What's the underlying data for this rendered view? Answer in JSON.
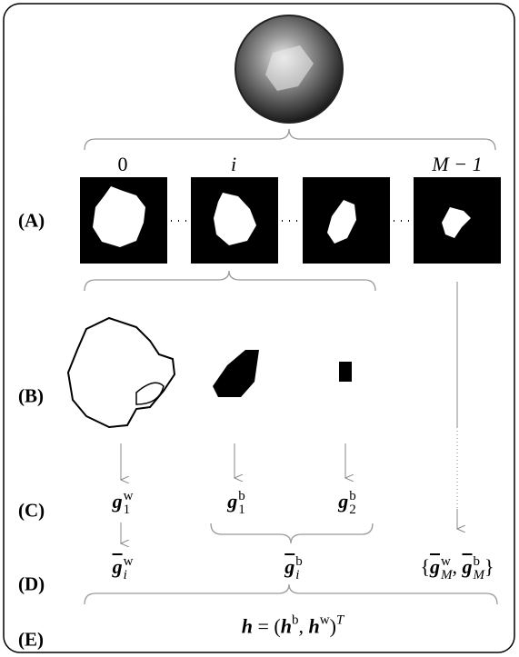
{
  "row_labels": [
    "(A)",
    "(B)",
    "(C)",
    "(D)",
    "(E)"
  ],
  "slice_labels": [
    "0",
    "i",
    "M − 1"
  ],
  "C": [
    {
      "base": "g",
      "sub": "1",
      "sup": "w"
    },
    {
      "base": "g",
      "sub": "1",
      "sup": "b"
    },
    {
      "base": "g",
      "sub": "2",
      "sup": "b"
    }
  ],
  "D": {
    "white": {
      "base": "g",
      "sub": "i",
      "sup": "w"
    },
    "black": {
      "base": "g",
      "sub": "i",
      "sup": "b"
    },
    "last": {
      "open": "{",
      "terms": [
        {
          "base": "g",
          "sub": "M",
          "sup": "w"
        },
        {
          "base": "g",
          "sub": "M",
          "sup": "b"
        }
      ],
      "sep": ",",
      "close": "}"
    }
  },
  "E": {
    "lhs": "h",
    "eq": "=",
    "open": "(",
    "terms": [
      {
        "base": "h",
        "sup": "b"
      },
      {
        "base": "h",
        "sup": "w"
      }
    ],
    "sep": ",",
    "close": ")",
    "sup": "T"
  }
}
